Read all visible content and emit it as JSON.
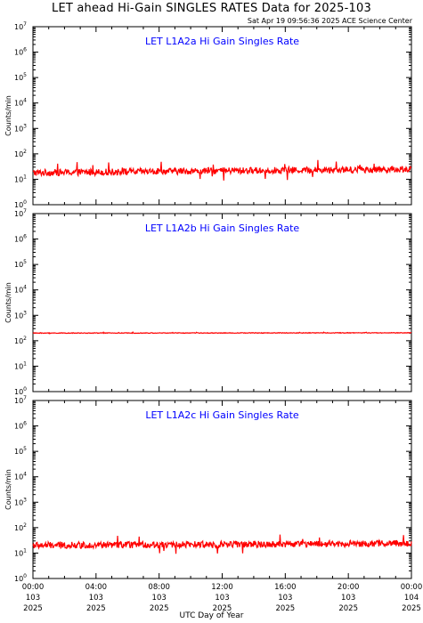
{
  "header": {
    "title": "LET ahead Hi-Gain SINGLES RATES Data for 2025-103",
    "timestamp": "Sat Apr 19 09:56:36 2025 ACE Science Center"
  },
  "footer": {
    "xlabel": "UTC Day of Year"
  },
  "colors": {
    "series": "#ff0000",
    "panel_title": "#0000ff",
    "axis": "#000000"
  },
  "chart_data": [
    {
      "type": "line",
      "title": "LET L1A2a Hi Gain Singles Rate",
      "ylabel": "Counts/min",
      "yscale": "log",
      "ylim": [
        1,
        10000000
      ],
      "xlim": [
        0,
        24
      ],
      "yticks": [
        "10^0",
        "10^1",
        "10^2",
        "10^3",
        "10^4",
        "10^5",
        "10^6",
        "10^7"
      ],
      "series": [
        {
          "baseline": 18,
          "noise_decades": 0.13,
          "trend_to": 25,
          "values_summary": "fluctuating ~10–50 counts/min"
        }
      ]
    },
    {
      "type": "line",
      "title": "LET L1A2b Hi Gain Singles Rate",
      "ylabel": "Counts/min",
      "yscale": "log",
      "ylim": [
        1,
        10000000
      ],
      "xlim": [
        0,
        24
      ],
      "yticks": [
        "10^0",
        "10^1",
        "10^2",
        "10^3",
        "10^4",
        "10^5",
        "10^6",
        "10^7"
      ],
      "series": [
        {
          "baseline": 200,
          "noise_decades": 0.012,
          "trend_to": 205,
          "values_summary": "steady ~200 counts/min"
        }
      ]
    },
    {
      "type": "line",
      "title": "LET L1A2c Hi Gain Singles Rate",
      "ylabel": "Counts/min",
      "yscale": "log",
      "ylim": [
        1,
        10000000
      ],
      "xlim": [
        0,
        24
      ],
      "yticks": [
        "10^0",
        "10^1",
        "10^2",
        "10^3",
        "10^4",
        "10^5",
        "10^6",
        "10^7"
      ],
      "series": [
        {
          "baseline": 20,
          "noise_decades": 0.13,
          "trend_to": 24,
          "values_summary": "fluctuating ~10–60 counts/min"
        }
      ]
    }
  ],
  "xaxis": {
    "ticks": [
      {
        "time": "00:00",
        "day": "103",
        "year": "2025"
      },
      {
        "time": "04:00",
        "day": "103",
        "year": "2025"
      },
      {
        "time": "08:00",
        "day": "103",
        "year": "2025"
      },
      {
        "time": "12:00",
        "day": "103",
        "year": "2025"
      },
      {
        "time": "16:00",
        "day": "103",
        "year": "2025"
      },
      {
        "time": "20:00",
        "day": "103",
        "year": "2025"
      },
      {
        "time": "00:00",
        "day": "104",
        "year": "2025"
      }
    ]
  }
}
